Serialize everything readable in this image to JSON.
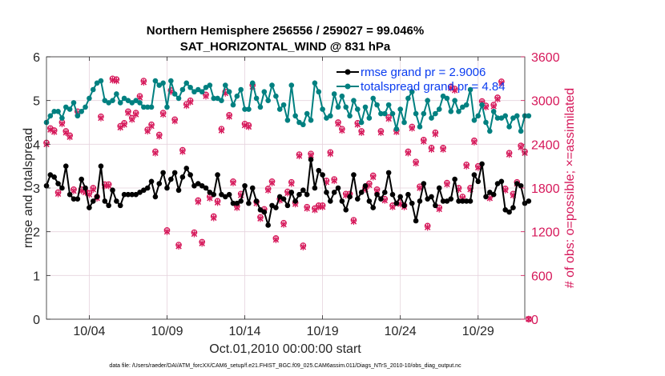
{
  "chart_data": {
    "type": "line",
    "title": "Northern Hemisphere 256556 / 259027 = 99.046%",
    "subtitle": "SAT_HORIZONTAL_WIND @ 831 hPa",
    "xlabel": "Oct.01,2010 00:00:00 start",
    "ylabel_left": "rmse and totalspread",
    "ylabel_right": "# of obs: o=possible; ×=assimilated",
    "footer": "data file: /Users/raeder/DAI/ATM_forcXX/CAM6_setup/f.e21.FHIST_BGC.f09_025.CAM6assim.011/Diags_NTrS_2010-10/obs_diag_output.nc",
    "x_range": [
      1.25,
      32.0
    ],
    "ylim_left": [
      0,
      6
    ],
    "ylim_right": [
      0,
      3600
    ],
    "x_ticks": [
      4,
      9,
      14,
      19,
      24,
      29
    ],
    "x_tick_labels": [
      "10/04",
      "10/09",
      "10/14",
      "10/19",
      "10/24",
      "10/29"
    ],
    "y_ticks_left": [
      0,
      1,
      2,
      3,
      4,
      5,
      6
    ],
    "y_ticks_right": [
      0,
      600,
      1200,
      1800,
      2400,
      3000,
      3600
    ],
    "grid": true,
    "legend_position": "top-right",
    "colors": {
      "rmse": "#000000",
      "totalspread": "#008080",
      "obs": "#d6185a",
      "legend_text": "#0a3cf0",
      "grid": "#e6d3dd"
    },
    "series": [
      {
        "name": "rmse",
        "legend": "rmse grand pr = 2.9006",
        "axis": "left",
        "values": [
          3.05,
          3.3,
          3.25,
          3.1,
          3.0,
          3.5,
          2.85,
          2.75,
          2.75,
          3.2,
          3.0,
          2.55,
          2.7,
          2.8,
          3.5,
          2.7,
          2.6,
          2.95,
          2.7,
          2.6,
          2.85,
          2.85,
          2.85,
          2.85,
          2.9,
          2.95,
          3.0,
          3.15,
          2.8,
          3.1,
          3.35,
          3.0,
          3.2,
          3.35,
          2.95,
          3.25,
          3.45,
          3.3,
          3.05,
          3.1,
          3.05,
          3.0,
          2.9,
          2.85,
          3.3,
          2.85,
          2.8,
          2.85,
          2.65,
          2.65,
          2.7,
          3.05,
          2.65,
          3.0,
          2.7,
          2.5,
          2.45,
          2.15,
          2.6,
          2.55,
          2.8,
          2.75,
          2.6,
          2.9,
          2.7,
          2.85,
          2.95,
          2.85,
          3.65,
          3.0,
          3.4,
          3.3,
          2.9,
          2.7,
          2.9,
          3.0,
          2.7,
          2.5,
          2.8,
          3.3,
          2.75,
          2.9,
          3.05,
          2.7,
          2.55,
          2.85,
          2.75,
          2.9,
          3.35,
          2.85,
          2.65,
          2.8,
          2.6,
          2.85,
          2.65,
          2.25,
          2.7,
          3.1,
          2.75,
          2.8,
          2.6,
          3.0,
          2.7,
          2.7,
          2.75,
          3.2,
          2.7,
          2.7,
          2.7,
          2.7,
          3.3,
          3.15,
          3.55,
          2.8,
          2.9,
          2.85,
          3.1,
          3.15,
          2.5,
          2.45,
          2.55,
          3.1,
          3.05,
          2.65,
          2.7
        ]
      },
      {
        "name": "totalspread",
        "legend": "totalspread grand pr = 4.84",
        "axis": "left",
        "values": [
          4.5,
          4.65,
          4.75,
          4.75,
          4.6,
          4.85,
          4.8,
          4.95,
          4.65,
          4.75,
          4.85,
          5.05,
          5.25,
          5.4,
          5.45,
          5.0,
          4.95,
          5.0,
          5.15,
          4.95,
          5.05,
          5.0,
          4.95,
          5.0,
          4.95,
          4.85,
          4.85,
          4.85,
          5.45,
          5.35,
          5.4,
          4.85,
          5.45,
          5.15,
          5.05,
          5.25,
          5.4,
          5.3,
          5.2,
          5.25,
          5.2,
          5.3,
          5.35,
          5.05,
          5.05,
          5.0,
          5.35,
          5.2,
          4.9,
          5.1,
          5.25,
          4.8,
          4.8,
          5.4,
          5.05,
          4.85,
          5.2,
          5.0,
          5.35,
          5.1,
          4.8,
          4.9,
          4.55,
          5.35,
          4.65,
          4.5,
          4.45,
          4.7,
          4.55,
          5.4,
          5.2,
          4.8,
          4.6,
          4.65,
          5.15,
          4.85,
          5.1,
          4.85,
          4.65,
          5.0,
          4.8,
          4.5,
          4.85,
          4.6,
          5.05,
          4.9,
          4.7,
          4.7,
          4.9,
          4.7,
          4.35,
          4.8,
          4.5,
          5.05,
          5.2,
          4.7,
          4.4,
          4.7,
          5.0,
          4.6,
          4.7,
          4.8,
          5.1,
          5.05,
          4.75,
          5.0,
          4.75,
          4.85,
          4.9,
          5.25,
          4.55,
          4.65,
          4.9,
          4.5,
          4.3,
          4.75,
          4.6,
          4.6,
          4.65,
          4.4,
          4.6,
          4.65,
          4.3,
          4.65,
          4.65
        ]
      },
      {
        "name": "obs possible",
        "legend": "",
        "axis": "right",
        "marker": "o",
        "values": [
          2420,
          2620,
          2590,
          1740,
          2700,
          2580,
          2520,
          1780,
          2850,
          1780,
          1760,
          1730,
          1800,
          1680,
          2780,
          1850,
          1850,
          3300,
          3290,
          2650,
          2690,
          2850,
          2760,
          2830,
          3060,
          3270,
          2600,
          2670,
          2300,
          2530,
          2830,
          1220,
          3140,
          2740,
          1020,
          2320,
          2950,
          3000,
          1190,
          1630,
          1060,
          3080,
          1680,
          1410,
          1620,
          2610,
          3120,
          2800,
          1890,
          1550,
          1720,
          2680,
          2660,
          3210,
          1610,
          1400,
          1510,
          1790,
          1890,
          1110,
          1650,
          1320,
          1750,
          1880,
          1600,
          2260,
          1010,
          1540,
          2270,
          1520,
          1560,
          1560,
          1900,
          2290,
          1920,
          2700,
          2610,
          1720,
          1720,
          1360,
          2690,
          2580,
          1800,
          1860,
          1970,
          1780,
          2580,
          1650,
          2770,
          1560,
          2590,
          1600,
          1560,
          2300,
          2640,
          2160,
          1820,
          2460,
          1280,
          2350,
          2560,
          1530,
          2350,
          1870,
          3190,
          3160,
          1800,
          1680,
          2120,
          1800,
          2450,
          2100,
          2990,
          2930,
          1680,
          2940,
          3040,
          3260,
          1790,
          2280,
          1720,
          1880,
          2380,
          2300,
          1
        ]
      },
      {
        "name": "obs assimilated",
        "legend": "",
        "axis": "right",
        "marker": "x",
        "values": [
          2400,
          2600,
          2570,
          1720,
          2680,
          2560,
          2500,
          1760,
          2830,
          1760,
          1740,
          1710,
          1780,
          1660,
          2760,
          1830,
          1830,
          3280,
          3270,
          2630,
          2670,
          2830,
          2740,
          2810,
          3040,
          3250,
          2580,
          2650,
          2280,
          2510,
          2810,
          1200,
          3120,
          2720,
          1000,
          2300,
          2930,
          2980,
          1170,
          1610,
          1040,
          3060,
          1660,
          1390,
          1600,
          2590,
          3100,
          2780,
          1870,
          1530,
          1700,
          2660,
          2640,
          3190,
          1590,
          1380,
          1490,
          1770,
          1870,
          1090,
          1630,
          1300,
          1730,
          1860,
          1580,
          2240,
          990,
          1520,
          2250,
          1500,
          1540,
          1540,
          1880,
          2270,
          1900,
          2680,
          2590,
          1700,
          1700,
          1340,
          2670,
          2560,
          1780,
          1840,
          1950,
          1760,
          2560,
          1630,
          2750,
          1540,
          2570,
          1580,
          1540,
          2280,
          2620,
          2140,
          1800,
          2440,
          1260,
          2330,
          2540,
          1510,
          2330,
          1850,
          3170,
          3140,
          1780,
          1660,
          2100,
          1780,
          2430,
          2080,
          2970,
          2910,
          1660,
          2920,
          3020,
          3240,
          1770,
          2260,
          1700,
          1860,
          2360,
          2280,
          1
        ]
      }
    ]
  }
}
